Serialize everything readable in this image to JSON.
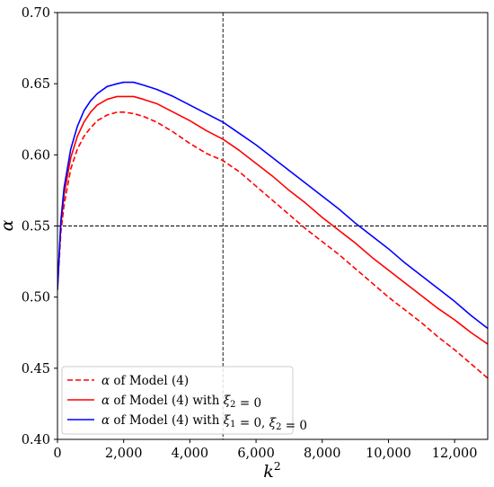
{
  "chart_data": {
    "type": "line",
    "xlabel": "k",
    "xlabel_superscript": "2",
    "ylabel": "α",
    "xlim": [
      0,
      13000
    ],
    "ylim": [
      0.4,
      0.7
    ],
    "x_ticks": [
      {
        "value": 0,
        "label": "0"
      },
      {
        "value": 2000,
        "label": "2,000"
      },
      {
        "value": 4000,
        "label": "4,000"
      },
      {
        "value": 6000,
        "label": "6,000"
      },
      {
        "value": 8000,
        "label": "8,000"
      },
      {
        "value": 10000,
        "label": "10,000"
      },
      {
        "value": 12000,
        "label": "12,000"
      }
    ],
    "y_ticks": [
      {
        "value": 0.4,
        "label": "0.40"
      },
      {
        "value": 0.45,
        "label": "0.45"
      },
      {
        "value": 0.5,
        "label": "0.50"
      },
      {
        "value": 0.55,
        "label": "0.55"
      },
      {
        "value": 0.6,
        "label": "0.60"
      },
      {
        "value": 0.65,
        "label": "0.65"
      },
      {
        "value": 0.7,
        "label": "0.70"
      }
    ],
    "reference_lines": [
      {
        "orientation": "vertical",
        "value": 5000,
        "style": "dashed",
        "color": "#000000"
      },
      {
        "orientation": "horizontal",
        "value": 0.55,
        "style": "dashed",
        "color": "#000000"
      }
    ],
    "legend_position": "lower-left",
    "series": [
      {
        "name": "α of Model (4)",
        "legend_parts": [
          {
            "t": "α",
            "style": "italic"
          },
          {
            "t": " of Model (4)"
          }
        ],
        "color": "#ff0000",
        "style": "dashed",
        "x": [
          0,
          100,
          200,
          400,
          600,
          800,
          1000,
          1200,
          1500,
          1800,
          2000,
          2300,
          2600,
          3000,
          3500,
          4000,
          4500,
          5000,
          5500,
          6000,
          6500,
          7000,
          7500,
          8000,
          8500,
          9000,
          9500,
          10000,
          10500,
          11000,
          11500,
          12000,
          12500,
          13000
        ],
        "y": [
          0.505,
          0.545,
          0.565,
          0.59,
          0.604,
          0.613,
          0.619,
          0.624,
          0.628,
          0.63,
          0.63,
          0.629,
          0.627,
          0.623,
          0.616,
          0.608,
          0.601,
          0.596,
          0.588,
          0.578,
          0.568,
          0.558,
          0.548,
          0.539,
          0.53,
          0.52,
          0.51,
          0.5,
          0.491,
          0.482,
          0.472,
          0.463,
          0.453,
          0.443
        ]
      },
      {
        "name": "α of Model (4) with ξ2 = 0",
        "legend_parts": [
          {
            "t": "α",
            "style": "italic"
          },
          {
            "t": " of Model (4) with "
          },
          {
            "t": "ξ",
            "style": "italic"
          },
          {
            "t": "2",
            "style": "sub"
          },
          {
            "t": " = 0"
          }
        ],
        "color": "#ff0000",
        "style": "solid",
        "x": [
          0,
          100,
          200,
          400,
          600,
          800,
          1000,
          1200,
          1500,
          1800,
          2000,
          2300,
          2600,
          3000,
          3500,
          4000,
          4500,
          5000,
          5500,
          6000,
          6500,
          7000,
          7500,
          8000,
          8500,
          9000,
          9500,
          10000,
          10500,
          11000,
          11500,
          12000,
          12500,
          13000
        ],
        "y": [
          0.505,
          0.55,
          0.572,
          0.598,
          0.613,
          0.623,
          0.63,
          0.635,
          0.639,
          0.641,
          0.641,
          0.641,
          0.639,
          0.636,
          0.63,
          0.624,
          0.617,
          0.611,
          0.603,
          0.594,
          0.585,
          0.575,
          0.566,
          0.556,
          0.547,
          0.538,
          0.528,
          0.519,
          0.51,
          0.501,
          0.492,
          0.484,
          0.475,
          0.467
        ]
      },
      {
        "name": "α of Model (4) with ξ1 = 0, ξ2 = 0",
        "legend_parts": [
          {
            "t": "α",
            "style": "italic"
          },
          {
            "t": " of Model (4) with "
          },
          {
            "t": "ξ",
            "style": "italic"
          },
          {
            "t": "1",
            "style": "sub"
          },
          {
            "t": " = 0, "
          },
          {
            "t": "ξ",
            "style": "italic"
          },
          {
            "t": "2",
            "style": "sub"
          },
          {
            "t": " = 0"
          }
        ],
        "color": "#0000ff",
        "style": "solid",
        "x": [
          0,
          100,
          200,
          400,
          600,
          800,
          1000,
          1200,
          1500,
          1800,
          2000,
          2300,
          2600,
          3000,
          3500,
          4000,
          4500,
          5000,
          5500,
          6000,
          6500,
          7000,
          7500,
          8000,
          8500,
          9000,
          9500,
          10000,
          10500,
          11000,
          11500,
          12000,
          12500,
          13000
        ],
        "y": [
          0.505,
          0.553,
          0.577,
          0.604,
          0.62,
          0.631,
          0.638,
          0.643,
          0.648,
          0.65,
          0.651,
          0.651,
          0.649,
          0.646,
          0.641,
          0.635,
          0.629,
          0.623,
          0.615,
          0.607,
          0.598,
          0.589,
          0.58,
          0.571,
          0.562,
          0.552,
          0.543,
          0.534,
          0.524,
          0.515,
          0.506,
          0.497,
          0.487,
          0.478
        ]
      }
    ]
  }
}
